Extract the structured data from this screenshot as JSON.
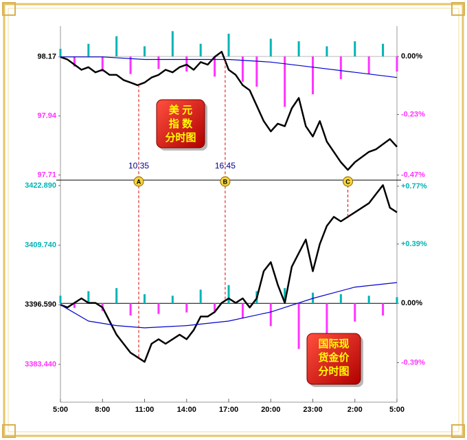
{
  "chart_data": [
    {
      "type": "line",
      "ylim": [
        97.69,
        98.29
      ],
      "yticks": [
        98.17,
        97.94,
        97.71
      ],
      "y2lim": [
        -0.49,
        0.12
      ],
      "y2ticks": [
        {
          "value": 0,
          "label": "0.00%"
        },
        {
          "value": -0.23,
          "label": "-0.23%"
        },
        {
          "value": -0.47,
          "label": "-0.47%"
        }
      ],
      "up_color": "#00b4b4",
      "down_color": "#ff33ff",
      "series": [
        {
          "color": "#000000",
          "x": [
            0,
            0.5,
            1,
            1.5,
            2,
            2.5,
            3,
            3.5,
            4,
            4.5,
            5,
            5.5,
            6,
            6.5,
            7,
            7.5,
            8,
            8.5,
            9,
            9.5,
            10,
            10.5,
            11,
            11.5,
            12,
            12.5,
            13,
            13.5,
            14,
            14.5,
            15,
            15.5,
            16,
            16.5,
            17,
            17.5,
            18,
            18.5,
            19,
            19.5,
            20,
            20.5,
            21,
            21.5,
            22,
            22.5,
            23,
            23.5,
            24
          ],
          "values": [
            98.17,
            98.16,
            98.14,
            98.12,
            98.13,
            98.11,
            98.12,
            98.1,
            98.1,
            98.08,
            98.07,
            98.06,
            98.07,
            98.09,
            98.1,
            98.12,
            98.11,
            98.13,
            98.14,
            98.12,
            98.15,
            98.14,
            98.17,
            98.19,
            98.12,
            98.1,
            98.06,
            98.04,
            97.98,
            97.92,
            97.88,
            97.91,
            97.9,
            97.97,
            98.01,
            97.9,
            97.86,
            97.92,
            97.84,
            97.8,
            97.76,
            97.73,
            97.76,
            97.78,
            97.8,
            97.81,
            97.83,
            97.85,
            97.82
          ]
        },
        {
          "color": "#0000cc",
          "x": [
            0,
            3,
            6,
            9,
            12,
            15,
            18,
            21,
            24
          ],
          "values": [
            98.17,
            98.17,
            98.16,
            98.16,
            98.16,
            98.15,
            98.13,
            98.11,
            98.09
          ]
        },
        {
          "type": "bar",
          "axis": "y2",
          "x": [
            0,
            1,
            2,
            3,
            4,
            5,
            6,
            7,
            8,
            9,
            10,
            11,
            12,
            13,
            14,
            15,
            16,
            17,
            18,
            19,
            20,
            21,
            22,
            23,
            24
          ],
          "values": [
            0.03,
            -0.04,
            0.05,
            -0.06,
            0.08,
            -0.07,
            0.04,
            -0.05,
            0.1,
            -0.06,
            0.05,
            -0.08,
            0.09,
            -0.1,
            -0.12,
            0.07,
            -0.2,
            0.06,
            -0.15,
            0.04,
            -0.09,
            0.06,
            -0.07,
            0.05,
            -0.06
          ]
        }
      ],
      "markers": [
        {
          "label": "A",
          "x": 5.583,
          "time": "10:35"
        },
        {
          "label": "B",
          "x": 11.75,
          "time": "16:45"
        },
        {
          "label": "C",
          "x": 20.5
        }
      ],
      "label_box": [
        "美 元",
        "指 数",
        "分时图"
      ]
    },
    {
      "type": "line",
      "xlim": [
        0,
        24
      ],
      "xticks": [
        {
          "value": 0,
          "label": "5:00"
        },
        {
          "value": 3,
          "label": "8:00"
        },
        {
          "value": 6,
          "label": "11:00"
        },
        {
          "value": 9,
          "label": "14:00"
        },
        {
          "value": 12,
          "label": "17:00"
        },
        {
          "value": 15,
          "label": "20:00"
        },
        {
          "value": 18,
          "label": "23:00"
        },
        {
          "value": 21,
          "label": "2:00"
        },
        {
          "value": 24,
          "label": "5:00"
        }
      ],
      "ylim": [
        3375.1,
        3424.1
      ],
      "yticks": [
        {
          "value": 3422.89,
          "label": "3422.890"
        },
        {
          "value": 3409.74,
          "label": "3409.740"
        },
        {
          "value": 3396.59,
          "label": "3396.590"
        },
        {
          "value": 3383.44,
          "label": "3383.440"
        }
      ],
      "y2lim": [
        -0.65,
        0.81
      ],
      "y2ticks": [
        {
          "value": 0.77,
          "label": "+0.77%"
        },
        {
          "value": 0.39,
          "label": "+0.39%"
        },
        {
          "value": 0,
          "label": "0.00%"
        },
        {
          "value": -0.39,
          "label": "-0.39%"
        }
      ],
      "up_color": "#00b4b4",
      "down_color": "#ff33ff",
      "series": [
        {
          "color": "#000000",
          "x": [
            0,
            0.5,
            1,
            1.5,
            2,
            2.5,
            3,
            3.5,
            4,
            4.5,
            5,
            5.5,
            6,
            6.5,
            7,
            7.5,
            8,
            8.5,
            9,
            9.5,
            10,
            10.5,
            11,
            11.5,
            12,
            12.5,
            13,
            13.5,
            14,
            14.5,
            15,
            15.5,
            16,
            16.5,
            17,
            17.5,
            18,
            18.5,
            19,
            19.5,
            20,
            20.5,
            21,
            21.5,
            22,
            22.5,
            23,
            23.5,
            24
          ],
          "values": [
            3396.59,
            3396,
            3397,
            3398,
            3397,
            3397,
            3396,
            3393,
            3390,
            3388,
            3386,
            3385,
            3384,
            3388,
            3389,
            3388,
            3389,
            3390,
            3389,
            3391,
            3394,
            3394,
            3395,
            3397,
            3398,
            3397,
            3398,
            3396,
            3398,
            3404,
            3406,
            3401,
            3397,
            3405,
            3408,
            3411,
            3404,
            3410,
            3414,
            3416,
            3415,
            3416,
            3417,
            3418,
            3419,
            3421,
            3423,
            3418,
            3417
          ]
        },
        {
          "color": "#0000cc",
          "x": [
            0,
            2,
            4,
            6,
            9,
            12,
            15,
            18,
            21,
            24
          ],
          "values": [
            3396.59,
            3393,
            3392,
            3391.5,
            3392,
            3393,
            3395,
            3398,
            3400.5,
            3401.5
          ]
        },
        {
          "type": "bar",
          "axis": "y2",
          "x": [
            0,
            1,
            2,
            3,
            4,
            5,
            6,
            7,
            8,
            9,
            10,
            11,
            12,
            13,
            14,
            15,
            16,
            17,
            18,
            19,
            20,
            21,
            22,
            23,
            24
          ],
          "values": [
            0.05,
            -0.03,
            0.08,
            -0.05,
            0.1,
            -0.08,
            0.06,
            -0.07,
            0.05,
            -0.06,
            0.09,
            -0.05,
            0.12,
            -0.1,
            0.08,
            -0.15,
            0.1,
            -0.3,
            0.07,
            -0.2,
            0.06,
            -0.12,
            0.05,
            -0.08,
            0.04
          ]
        }
      ],
      "label_box": [
        "国际现",
        "货金价",
        "分时图"
      ]
    }
  ]
}
